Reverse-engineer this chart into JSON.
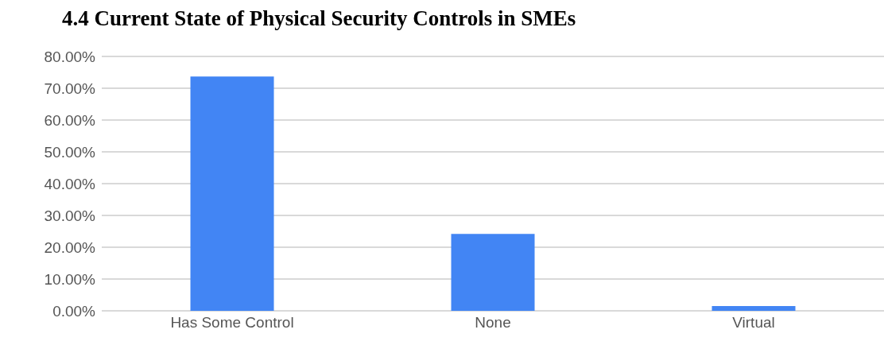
{
  "chart_data": {
    "type": "bar",
    "title": "4.4 Current State of Physical Security Controls in SMEs",
    "categories": [
      "Has Some Control",
      "None",
      "Virtual"
    ],
    "values": [
      73.7,
      24.2,
      1.5
    ],
    "color": "#4285f4",
    "ylim": [
      0,
      80
    ],
    "yticks": [
      {
        "value": 0,
        "label": "0.00%"
      },
      {
        "value": 10,
        "label": "10.00%"
      },
      {
        "value": 20,
        "label": "20.00%"
      },
      {
        "value": 30,
        "label": "30.00%"
      },
      {
        "value": 40,
        "label": "40.00%"
      },
      {
        "value": 50,
        "label": "50.00%"
      },
      {
        "value": 60,
        "label": "60.00%"
      },
      {
        "value": 70,
        "label": "70.00%"
      },
      {
        "value": 80,
        "label": "80.00%"
      }
    ],
    "grid": "y",
    "legend": false
  }
}
